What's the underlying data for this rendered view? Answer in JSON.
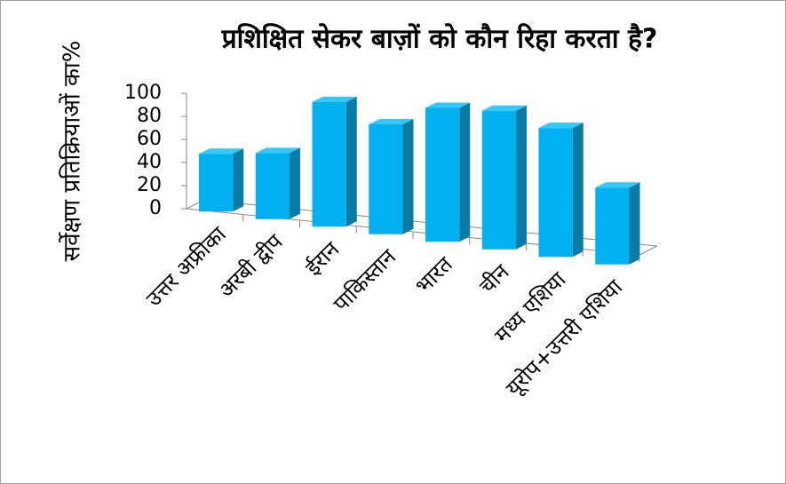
{
  "chart_data": {
    "type": "bar3d",
    "title": "प्रशिक्षित सेकर बाज़ों को कौन रिहा करता है?",
    "y_label": "सर्वेक्षण प्रतिक्रियाओं का%",
    "categories": [
      "उत्तर अफ्रीका",
      "अरबी द्वीप",
      "ईरान",
      "पाकिस्तान",
      "भारत",
      "चीन",
      "मध्य एशिया",
      "यूरोप+उत्तरी एशिया"
    ],
    "values": [
      50,
      55,
      100,
      85,
      100,
      100,
      90,
      52
    ],
    "color": "#00b0f0",
    "ylim": [
      0,
      100
    ],
    "yticks": [
      0,
      20,
      40,
      60,
      80,
      100
    ],
    "grid": false
  }
}
